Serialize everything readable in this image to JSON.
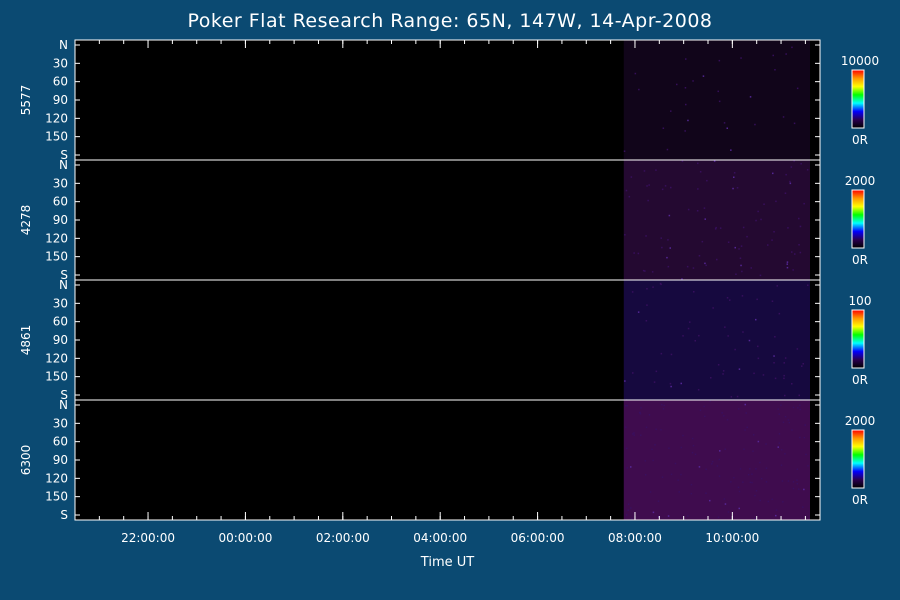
{
  "title": "Poker Flat Research Range: 65N, 147W, 14-Apr-2008",
  "chart_data": {
    "type": "heatmap",
    "title": "Poker Flat Research Range: 65N, 147W, 14-Apr-2008",
    "xlabel": "Time UT",
    "x_ticks": [
      "22:00:00",
      "00:00:00",
      "02:00:00",
      "04:00:00",
      "06:00:00",
      "08:00:00",
      "10:00:00"
    ],
    "x_range_hours": [
      20.5,
      35.8
    ],
    "data_start_hour": 31.77,
    "y_ticks": [
      "N",
      "30",
      "60",
      "90",
      "120",
      "150",
      "S"
    ],
    "y_range": [
      0,
      180
    ],
    "panels": [
      {
        "name": "5577",
        "colorbar_max": "10000",
        "colorbar_min": "0R",
        "intensity": 0.12,
        "color": "#14061e"
      },
      {
        "name": "4278",
        "colorbar_max": "2000",
        "colorbar_min": "0R",
        "intensity": 0.35,
        "color": "#2a0a3a"
      },
      {
        "name": "4861",
        "colorbar_max": "100",
        "colorbar_min": "0R",
        "intensity": 0.25,
        "color": "#1a0a4a"
      },
      {
        "name": "6300",
        "colorbar_max": "2000",
        "colorbar_min": "0R",
        "intensity": 0.55,
        "color": "#4a0e5c"
      }
    ],
    "colorbar_colors": [
      "#ff0000",
      "#ff9900",
      "#ffff00",
      "#00ff00",
      "#00ffff",
      "#0000ff",
      "#2a0050",
      "#000000"
    ]
  }
}
